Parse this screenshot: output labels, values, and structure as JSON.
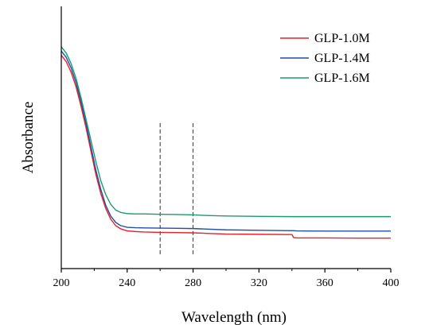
{
  "chart_data": {
    "type": "line",
    "title": "",
    "xlabel": "Wavelength (nm)",
    "ylabel": "Absorbance",
    "xlim": [
      200,
      400
    ],
    "ylim": [
      0,
      1
    ],
    "x_ticks": [
      200,
      240,
      280,
      320,
      360,
      400
    ],
    "y_ticks_shown": false,
    "grid": false,
    "legend_position": "top-right",
    "reference_lines_x": [
      260,
      280
    ],
    "x": [
      200,
      203,
      206,
      209,
      212,
      215,
      218,
      221,
      224,
      227,
      230,
      233,
      236,
      240,
      245,
      250,
      260,
      270,
      280,
      290,
      300,
      320,
      340,
      341,
      343,
      360,
      380,
      400
    ],
    "series": [
      {
        "name": "GLP-1.0M",
        "color": "#e8212a",
        "values": [
          0.89,
          0.86,
          0.81,
          0.74,
          0.65,
          0.55,
          0.44,
          0.33,
          0.24,
          0.17,
          0.12,
          0.09,
          0.075,
          0.065,
          0.062,
          0.06,
          0.058,
          0.057,
          0.056,
          0.053,
          0.05,
          0.049,
          0.048,
          0.034,
          0.032,
          0.032,
          0.031,
          0.031
        ]
      },
      {
        "name": "GLP-1.4M",
        "color": "#1f4fa8",
        "values": [
          0.91,
          0.88,
          0.83,
          0.76,
          0.67,
          0.57,
          0.46,
          0.35,
          0.26,
          0.185,
          0.135,
          0.105,
          0.09,
          0.082,
          0.08,
          0.079,
          0.078,
          0.077,
          0.076,
          0.073,
          0.07,
          0.068,
          0.066,
          0.066,
          0.065,
          0.064,
          0.064,
          0.064
        ]
      },
      {
        "name": "GLP-1.6M",
        "color": "#1d9a6c",
        "values": [
          0.93,
          0.9,
          0.85,
          0.78,
          0.69,
          0.59,
          0.49,
          0.39,
          0.3,
          0.235,
          0.19,
          0.163,
          0.152,
          0.146,
          0.145,
          0.145,
          0.143,
          0.142,
          0.14,
          0.137,
          0.135,
          0.133,
          0.132,
          0.132,
          0.132,
          0.132,
          0.132,
          0.132
        ]
      }
    ]
  }
}
